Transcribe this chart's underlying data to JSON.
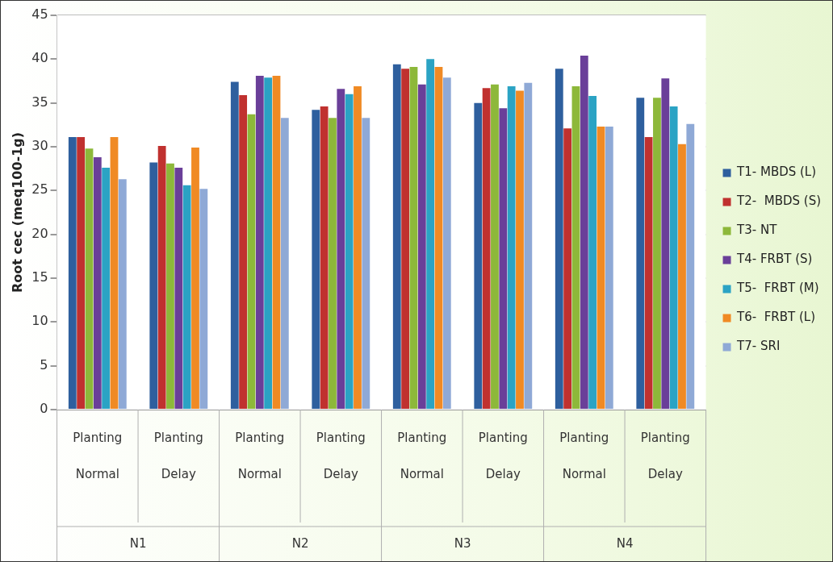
{
  "chart_data": {
    "type": "bar",
    "ylabel": "Root cec (meq100-1g)",
    "categories": [
      "Planting\nNormal",
      "Planting\nDelay",
      "Planting\nNormal",
      "Planting\nDelay",
      "Planting\nNormal",
      "Planting\nDelay",
      "Planting\nNormal",
      "Planting\nDelay"
    ],
    "annotations": [
      "N1",
      "N2",
      "N3",
      "N4"
    ],
    "series": [
      {
        "name": "T1- MBDS (L)",
        "color": "#2e5f9e",
        "values": [
          31.1,
          28.2,
          37.4,
          34.2,
          39.4,
          35.0,
          38.9,
          35.6
        ]
      },
      {
        "name": "T2-  MBDS (S)",
        "color": "#c0312f",
        "values": [
          31.1,
          30.1,
          35.9,
          34.6,
          38.9,
          36.7,
          32.1,
          31.1
        ]
      },
      {
        "name": "T3- NT",
        "color": "#8db83a",
        "values": [
          29.8,
          28.1,
          33.7,
          33.3,
          39.1,
          37.1,
          36.9,
          35.6
        ]
      },
      {
        "name": "T4- FRBT (S)",
        "color": "#6a3f99",
        "values": [
          28.8,
          27.6,
          38.1,
          36.6,
          37.1,
          34.4,
          40.4,
          37.8
        ]
      },
      {
        "name": "T5-  FRBT (M)",
        "color": "#2ba3c4",
        "values": [
          27.6,
          25.6,
          37.9,
          36.0,
          40.0,
          36.9,
          35.8,
          34.6
        ]
      },
      {
        "name": "T6-  FRBT (L)",
        "color": "#f08a24",
        "values": [
          31.1,
          29.9,
          38.1,
          36.9,
          39.1,
          36.4,
          32.3,
          30.3
        ]
      },
      {
        "name": "T7- SRI",
        "color": "#8fa9d6",
        "values": [
          26.3,
          25.2,
          33.3,
          33.3,
          37.9,
          37.3,
          32.3,
          32.6
        ]
      }
    ],
    "ylim": [
      0,
      45
    ],
    "yticks": [
      0,
      5,
      10,
      15,
      20,
      25,
      30,
      35,
      40,
      45
    ],
    "grid": "y",
    "legend": "right"
  }
}
